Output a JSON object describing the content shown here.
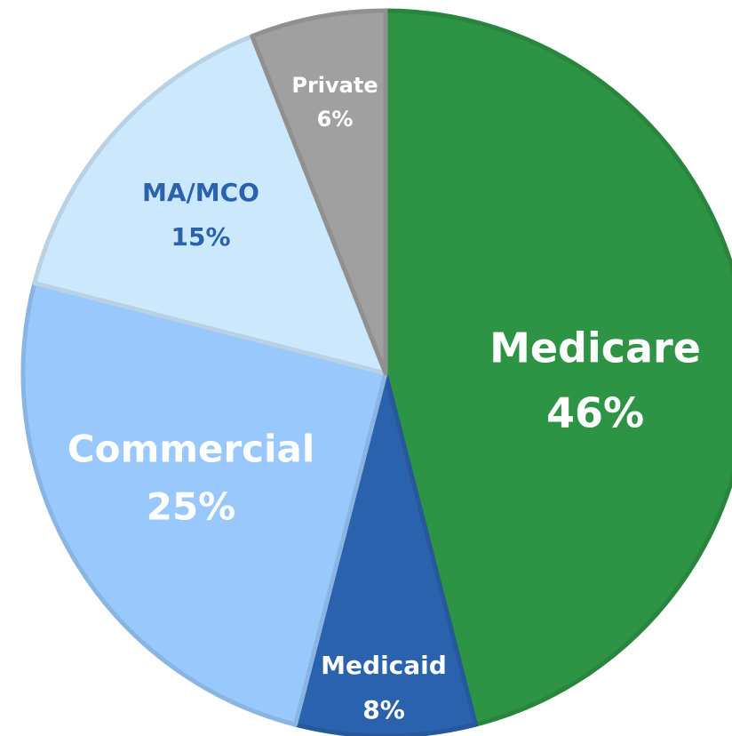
{
  "chart_data": {
    "type": "pie",
    "categories": [
      "Medicare",
      "Medicaid",
      "Commercial",
      "MA/MCO",
      "Private"
    ],
    "values": [
      46,
      8,
      25,
      15,
      6
    ],
    "value_labels": [
      "46%",
      "8%",
      "25%",
      "15%",
      "6%"
    ],
    "colors": [
      "#2e9445",
      "#2b62ad",
      "#99c9fc",
      "#cce8fd",
      "#a0a0a0"
    ]
  }
}
